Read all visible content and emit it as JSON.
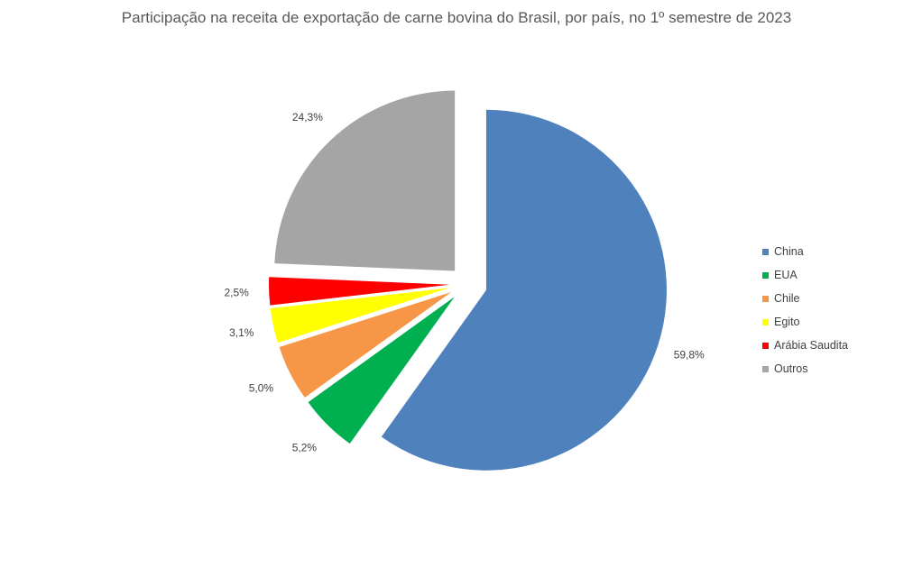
{
  "chart_data": {
    "type": "pie",
    "title": "Participação na receita de exportação de carne bovina do Brasil, por país, no 1º semestre de 2023",
    "slices": [
      {
        "label": "China",
        "value": 59.8,
        "data_label": "59,8%",
        "color": "#4F81BD"
      },
      {
        "label": "EUA",
        "value": 5.2,
        "data_label": "5,2%",
        "color": "#00B050"
      },
      {
        "label": "Chile",
        "value": 5.0,
        "data_label": "5,0%",
        "color": "#F79646"
      },
      {
        "label": "Egito",
        "value": 3.1,
        "data_label": "3,1%",
        "color": "#FFFF00"
      },
      {
        "label": "Arábia Saudita",
        "value": 2.5,
        "data_label": "2,5%",
        "color": "#FF0000"
      },
      {
        "label": "Outros",
        "value": 24.3,
        "data_label": "24,3%",
        "color": "#A5A5A5"
      }
    ],
    "exploded": true,
    "legend_position": "right"
  }
}
